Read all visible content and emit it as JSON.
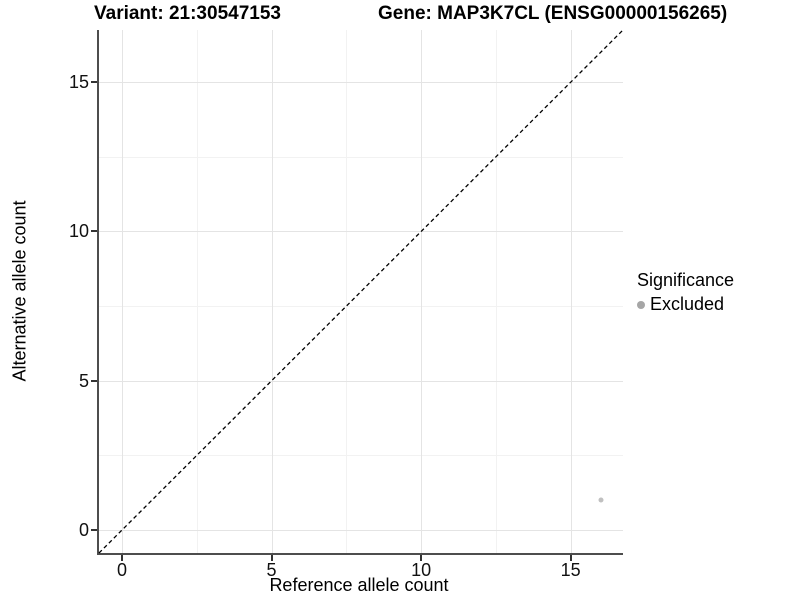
{
  "title": {
    "variant_label": "Variant: 21:30547153",
    "gene_label": "Gene: MAP3K7CL (ENSG00000156265)"
  },
  "chart_data": {
    "type": "scatter",
    "title": "Variant: 21:30547153 — Gene: MAP3K7CL (ENSG00000156265)",
    "xlabel": "Reference allele count",
    "ylabel": "Alternative allele count",
    "xlim": [
      -0.77,
      16.75
    ],
    "ylim": [
      -0.77,
      16.75
    ],
    "x_major_ticks": [
      0,
      5,
      10,
      15
    ],
    "y_major_ticks": [
      0,
      5,
      10,
      15
    ],
    "x_minor_gridlines": [
      2.5,
      7.5,
      12.5
    ],
    "y_minor_gridlines": [
      2.5,
      7.5,
      12.5
    ],
    "grid": "major and minor gridlines, light gray on white",
    "identity_line": {
      "equation": "y = x",
      "style": "dashed",
      "color": "#000000"
    },
    "series": [
      {
        "name": "Excluded",
        "color": "#c0c0c0",
        "points": [
          [
            16,
            1
          ]
        ]
      }
    ],
    "legend": {
      "position": "right",
      "title": "Significance",
      "entries": [
        {
          "label": "Excluded",
          "swatch_color": "#a6a6a6"
        }
      ]
    },
    "colors": {
      "axis_line": "#4d4d4d",
      "major_grid": "#e4e4e4",
      "minor_grid": "#f2f2f2",
      "tick_label": "#111111"
    }
  }
}
